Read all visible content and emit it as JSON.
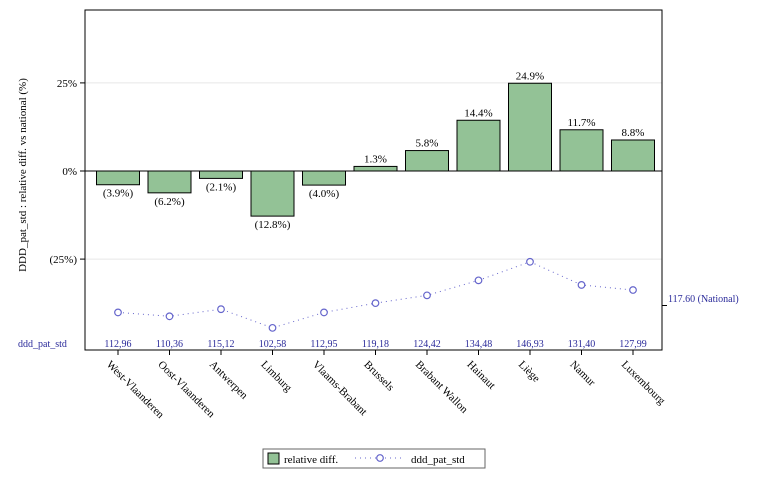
{
  "chart_data": {
    "type": "bar",
    "ylabel": "DDD_pat_std : relative diff. vs national (%)",
    "categories": [
      "West-Vlaanderen",
      "Oost-Vlaanderen",
      "Antwerpen",
      "Limburg",
      "Vlaams-Brabant",
      "Brussels",
      "Brabant Wallon",
      "Hainaut",
      "Liège",
      "Namur",
      "Luxembourg"
    ],
    "yticks": [
      "25%",
      "0%",
      "(25%)"
    ],
    "grid": true,
    "series": [
      {
        "name": "relative diff.",
        "type": "bar",
        "color": "#93c296",
        "values": [
          -3.9,
          -6.2,
          -2.1,
          -12.8,
          -4.0,
          1.3,
          5.8,
          14.4,
          24.9,
          11.7,
          8.8
        ],
        "labels": [
          "(3.9%)",
          "(6.2%)",
          "(2.1%)",
          "(12.8%)",
          "(4.0%)",
          "1.3%",
          "5.8%",
          "14.4%",
          "24.9%",
          "11.7%",
          "8.8%"
        ]
      },
      {
        "name": "ddd_pat_std",
        "type": "line",
        "color": "#6666cc",
        "values": [
          112.96,
          110.36,
          115.12,
          102.58,
          112.95,
          119.18,
          124.42,
          134.48,
          146.93,
          131.4,
          127.99
        ],
        "labels": [
          "112,96",
          "110,36",
          "115,12",
          "102,58",
          "112,95",
          "119,18",
          "124,42",
          "134,48",
          "146,93",
          "131,40",
          "127,99"
        ]
      }
    ],
    "row_label": "ddd_pat_std",
    "reference_label": "117.60 (National)",
    "reference_value": 117.6,
    "legend": [
      "relative diff.",
      "ddd_pat_std"
    ],
    "legend_position": "bottom"
  }
}
